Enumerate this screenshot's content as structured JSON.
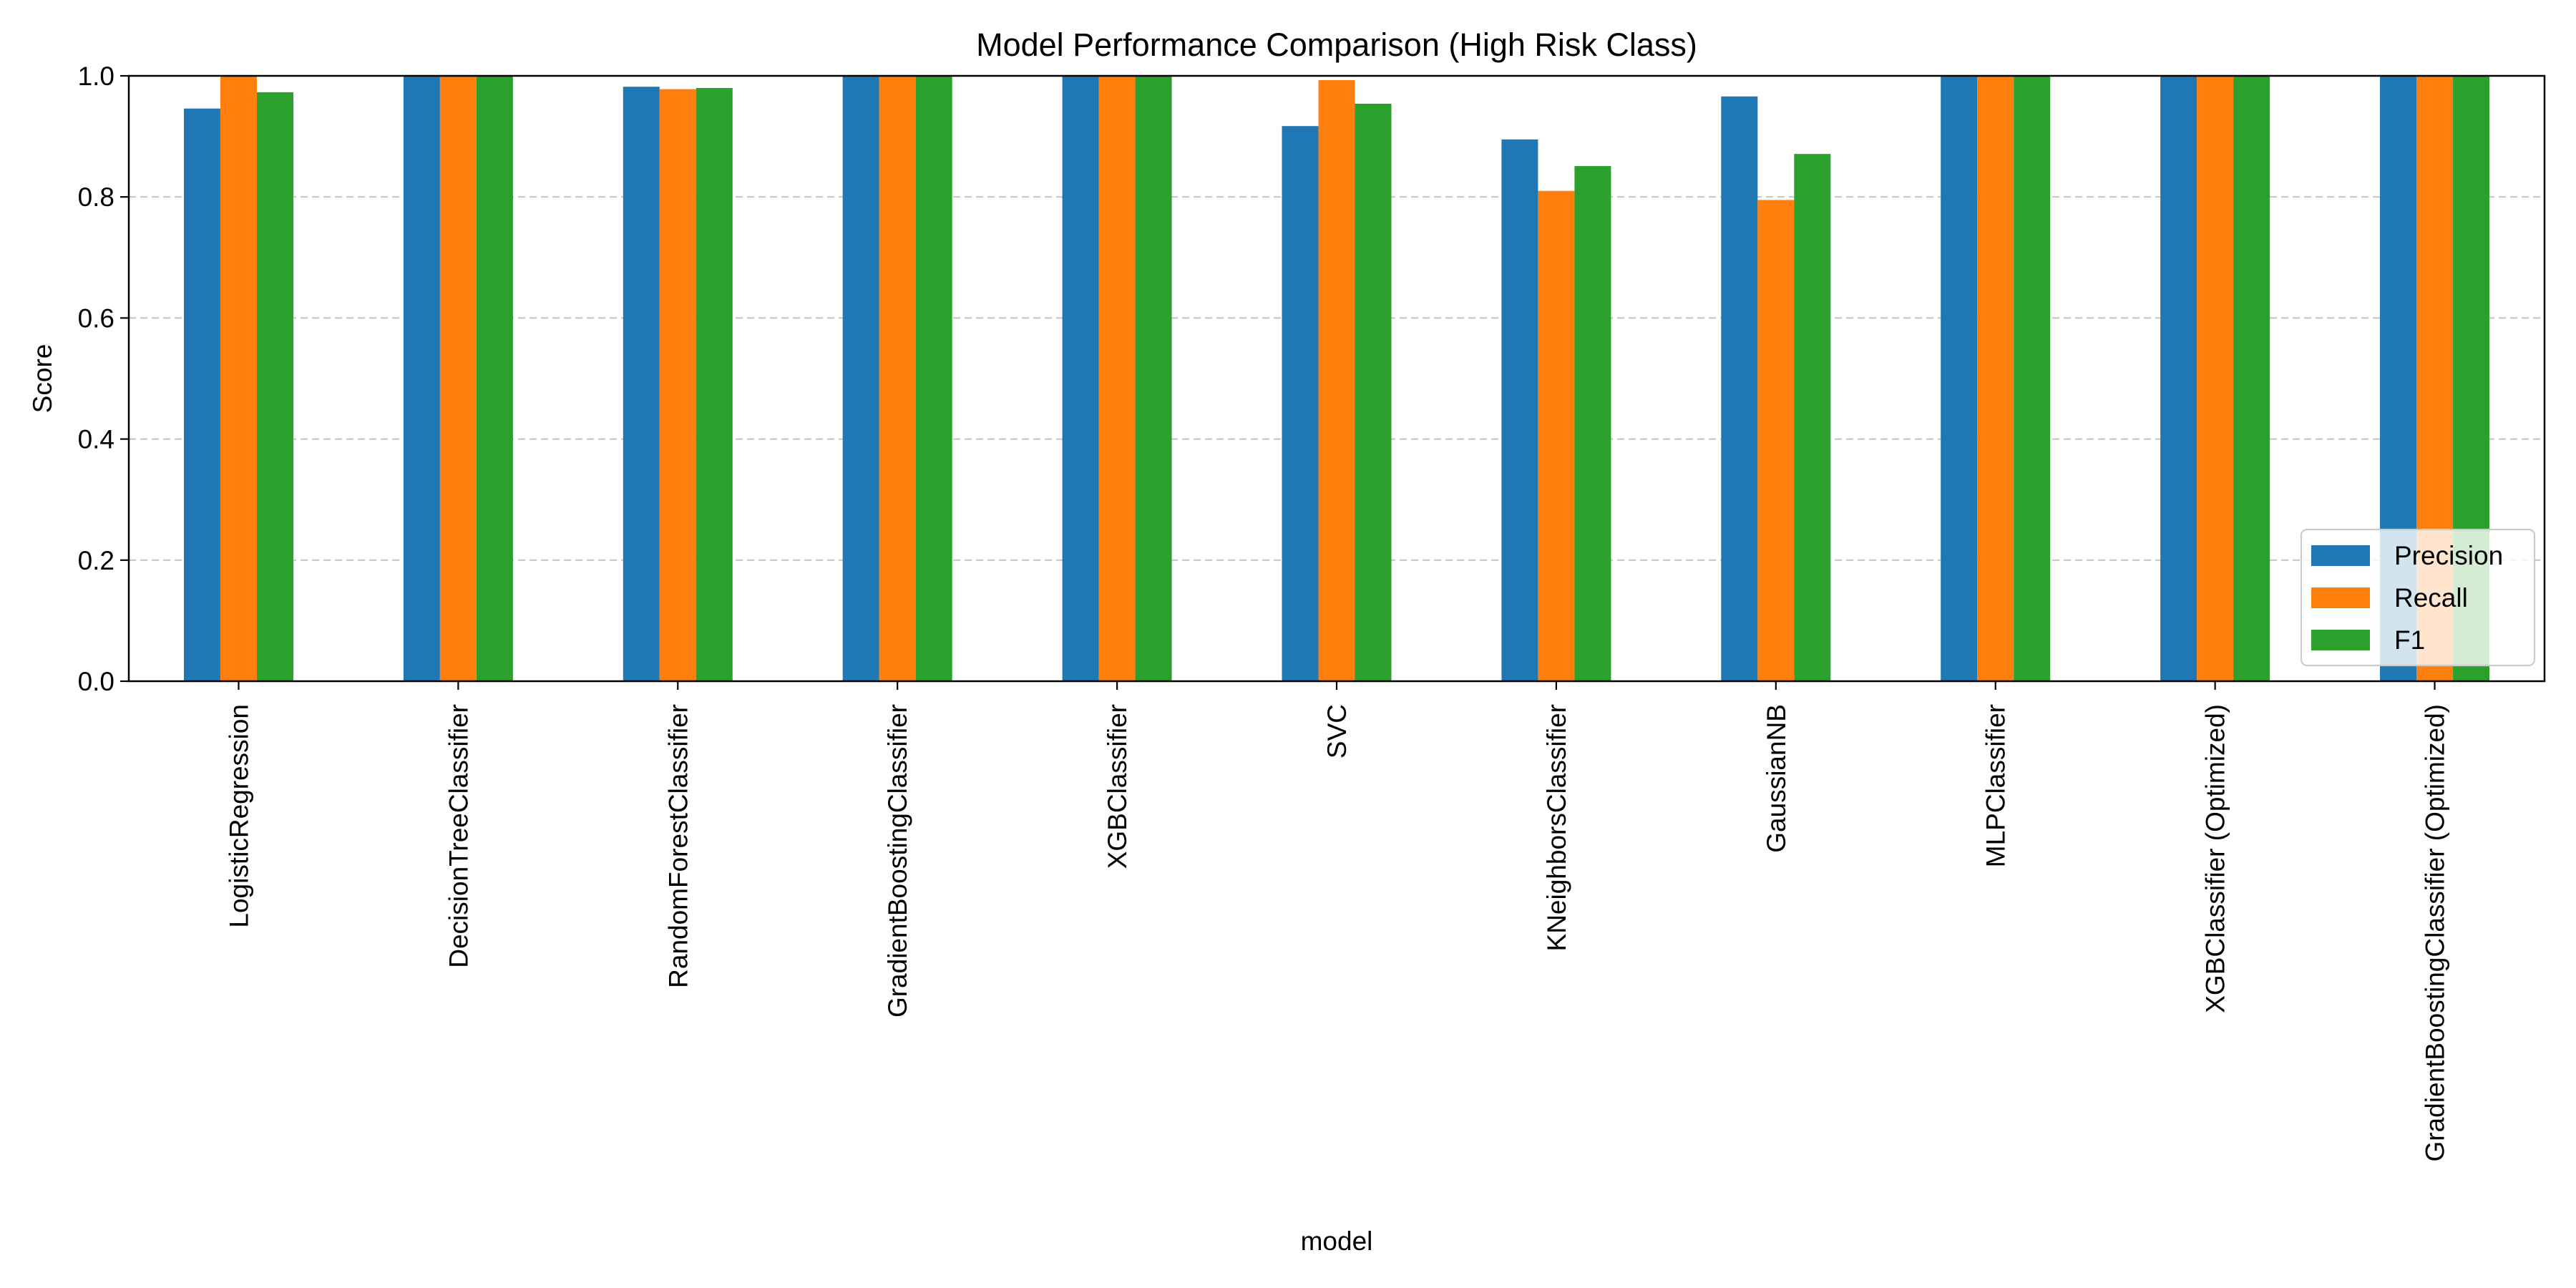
{
  "chart_data": {
    "type": "bar",
    "title": "Model Performance Comparison (High Risk Class)",
    "xlabel": "model",
    "ylabel": "Score",
    "ylim": [
      0,
      1.0
    ],
    "yticks": [
      0.0,
      0.2,
      0.4,
      0.6,
      0.8,
      1.0
    ],
    "ytick_labels": [
      "0.0",
      "0.2",
      "0.4",
      "0.6",
      "0.8",
      "1.0"
    ],
    "grid": "y-dashed",
    "legend_position": "lower-right",
    "categories": [
      "LogisticRegression",
      "DecisionTreeClassifier",
      "RandomForestClassifier",
      "GradientBoostingClassifier",
      "XGBClassifier",
      "SVC",
      "KNeighborsClassifier",
      "GaussianNB",
      "MLPClassifier",
      "XGBClassifier (Optimized)",
      "GradientBoostingClassifier (Optimized)"
    ],
    "series": [
      {
        "name": "Precision",
        "color": "#1f77b4",
        "values": [
          0.946,
          1.0,
          0.982,
          1.0,
          1.0,
          0.917,
          0.895,
          0.966,
          1.0,
          1.0,
          1.0
        ]
      },
      {
        "name": "Recall",
        "color": "#ff7f0e",
        "values": [
          1.0,
          1.0,
          0.978,
          1.0,
          1.0,
          0.993,
          0.81,
          0.795,
          1.0,
          1.0,
          1.0
        ]
      },
      {
        "name": "F1",
        "color": "#2ca02c",
        "values": [
          0.973,
          1.0,
          0.98,
          1.0,
          1.0,
          0.954,
          0.851,
          0.871,
          1.0,
          1.0,
          1.0
        ]
      }
    ]
  }
}
